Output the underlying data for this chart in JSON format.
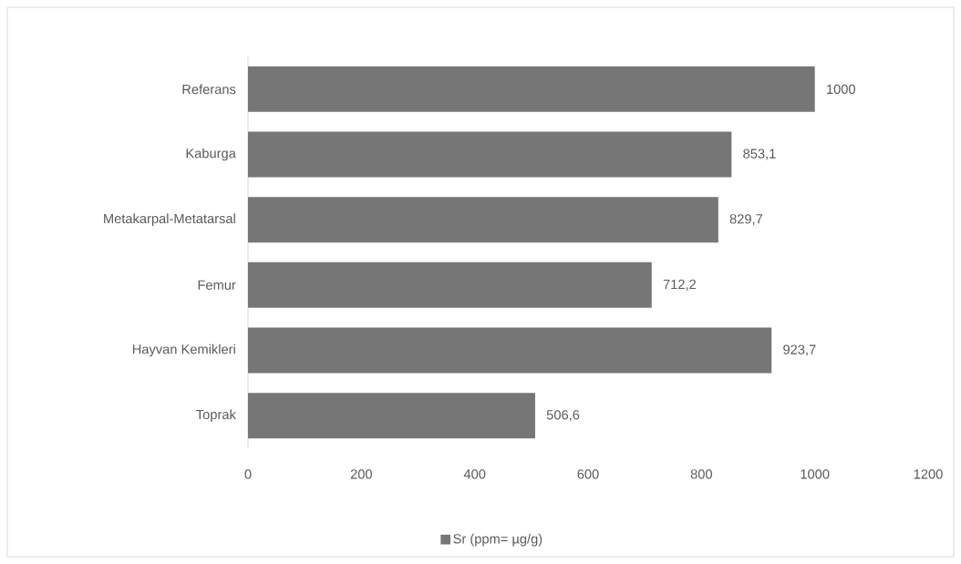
{
  "chart_data": {
    "type": "bar",
    "orientation": "horizontal",
    "categories": [
      "Referans",
      "Kaburga",
      "Metakarpal-Metatarsal",
      "Femur",
      "Hayvan Kemikleri",
      "Toprak"
    ],
    "series": [
      {
        "name": "Sr (ppm= µg/g)",
        "color": "#767676",
        "values": [
          1000,
          853.1,
          829.7,
          712.2,
          923.7,
          506.6
        ],
        "value_labels": [
          "1000",
          "853,1",
          "829,7",
          "712,2",
          "923,7",
          "506,6"
        ]
      }
    ],
    "xlim": [
      0,
      1200
    ],
    "xticks": [
      0,
      200,
      400,
      600,
      800,
      1000,
      1200
    ],
    "legend": "bottom"
  }
}
